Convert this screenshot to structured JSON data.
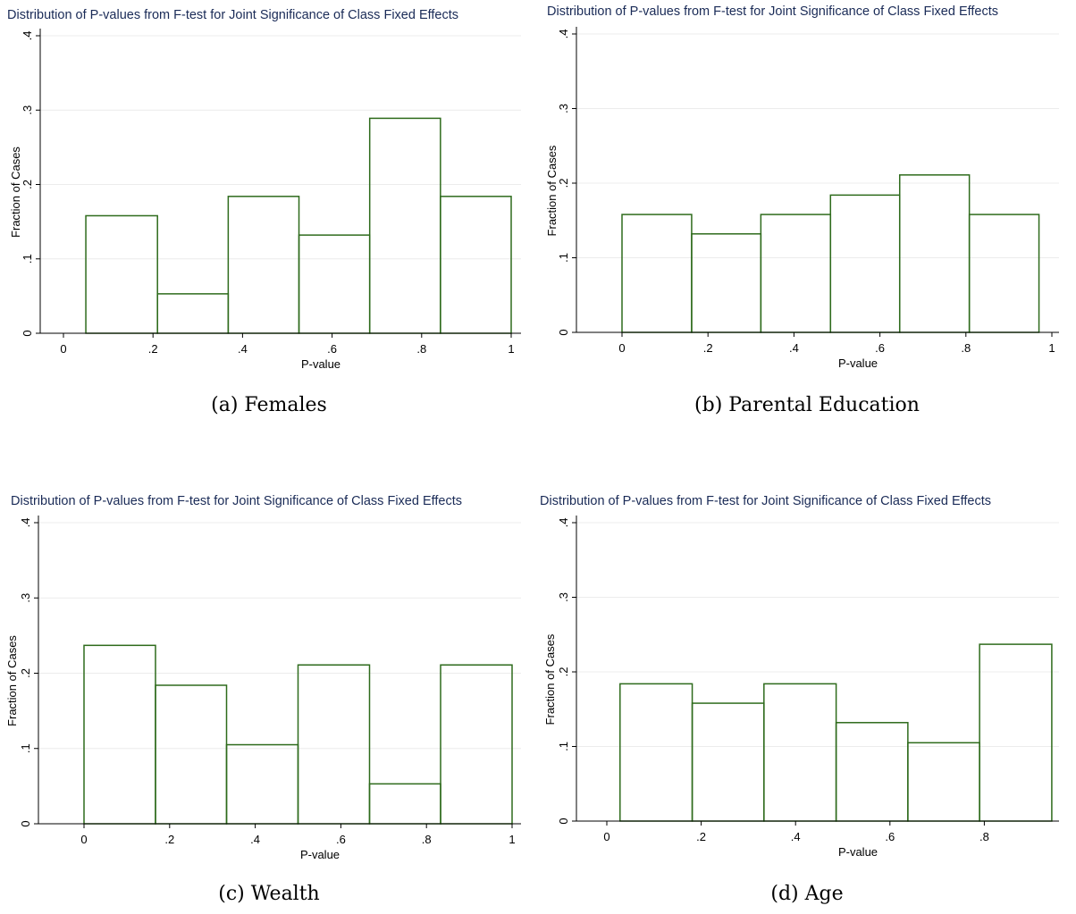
{
  "chart_data": [
    {
      "type": "bar",
      "title": "Distribution of P-values from F-test for Joint Significance of Class Fixed Effects",
      "xlabel": "P-value",
      "ylabel": "Fraction of Cases",
      "caption": "(a) Females",
      "xlim": [
        -0.05,
        1.0
      ],
      "ylim": [
        0,
        0.4
      ],
      "x_ticks": [
        "0",
        ".2",
        ".4",
        ".6",
        ".8",
        "1"
      ],
      "y_ticks": [
        "0",
        ".1",
        ".2",
        ".3",
        ".4"
      ],
      "grid": true,
      "bar_color": "#2e6b1c",
      "bins": [
        {
          "x0": 0.05,
          "x1": 0.21,
          "value": 0.158
        },
        {
          "x0": 0.21,
          "x1": 0.368,
          "value": 0.053
        },
        {
          "x0": 0.368,
          "x1": 0.526,
          "value": 0.184
        },
        {
          "x0": 0.526,
          "x1": 0.684,
          "value": 0.132
        },
        {
          "x0": 0.684,
          "x1": 0.842,
          "value": 0.289
        },
        {
          "x0": 0.842,
          "x1": 1.0,
          "value": 0.184
        }
      ]
    },
    {
      "type": "bar",
      "title": "Distribution of P-values from F-test for Joint Significance of Class Fixed Effects",
      "xlabel": "P-value",
      "ylabel": "Fraction of Cases",
      "caption": "(b) Parental Education",
      "xlim": [
        -0.1,
        1.0
      ],
      "ylim": [
        0,
        0.4
      ],
      "x_ticks": [
        "0",
        ".2",
        ".4",
        ".6",
        ".8",
        "1"
      ],
      "y_ticks": [
        "0",
        ".1",
        ".2",
        ".3",
        ".4"
      ],
      "grid": true,
      "bar_color": "#2e6b1c",
      "bins": [
        {
          "x0": 0.0,
          "x1": 0.162,
          "value": 0.158
        },
        {
          "x0": 0.162,
          "x1": 0.323,
          "value": 0.132
        },
        {
          "x0": 0.323,
          "x1": 0.485,
          "value": 0.158
        },
        {
          "x0": 0.485,
          "x1": 0.646,
          "value": 0.184
        },
        {
          "x0": 0.646,
          "x1": 0.808,
          "value": 0.211
        },
        {
          "x0": 0.808,
          "x1": 0.97,
          "value": 0.158
        }
      ]
    },
    {
      "type": "bar",
      "title": "Distribution of P-values from F-test for Joint Significance of Class Fixed Effects",
      "xlabel": "P-value",
      "ylabel": "Fraction of Cases",
      "caption": "(c) Wealth",
      "xlim": [
        -0.1,
        1.0
      ],
      "ylim": [
        0,
        0.4
      ],
      "x_ticks": [
        "0",
        ".2",
        ".4",
        ".6",
        ".8",
        "1"
      ],
      "y_ticks": [
        "0",
        ".1",
        ".2",
        ".3",
        ".4"
      ],
      "grid": true,
      "bar_color": "#2e6b1c",
      "bins": [
        {
          "x0": 0.0,
          "x1": 0.167,
          "value": 0.237
        },
        {
          "x0": 0.167,
          "x1": 0.333,
          "value": 0.184
        },
        {
          "x0": 0.333,
          "x1": 0.5,
          "value": 0.105
        },
        {
          "x0": 0.5,
          "x1": 0.667,
          "value": 0.211
        },
        {
          "x0": 0.667,
          "x1": 0.833,
          "value": 0.053
        },
        {
          "x0": 0.833,
          "x1": 1.0,
          "value": 0.211
        }
      ]
    },
    {
      "type": "bar",
      "title": "Distribution of P-values from F-test for Joint Significance of Class Fixed Effects",
      "xlabel": "P-value",
      "ylabel": "Fraction of Cases",
      "caption": "(d) Age",
      "xlim": [
        -0.1,
        0.95
      ],
      "ylim": [
        0,
        0.4
      ],
      "x_ticks": [
        "0",
        ".2",
        ".4",
        ".6",
        ".8"
      ],
      "y_ticks": [
        "0",
        ".1",
        ".2",
        ".3",
        ".4"
      ],
      "grid": true,
      "bar_color": "#2e6b1c",
      "bins": [
        {
          "x0": 0.028,
          "x1": 0.181,
          "value": 0.184
        },
        {
          "x0": 0.181,
          "x1": 0.333,
          "value": 0.158
        },
        {
          "x0": 0.333,
          "x1": 0.486,
          "value": 0.184
        },
        {
          "x0": 0.486,
          "x1": 0.638,
          "value": 0.132
        },
        {
          "x0": 0.638,
          "x1": 0.79,
          "value": 0.105
        },
        {
          "x0": 0.79,
          "x1": 0.943,
          "value": 0.237
        }
      ]
    }
  ]
}
